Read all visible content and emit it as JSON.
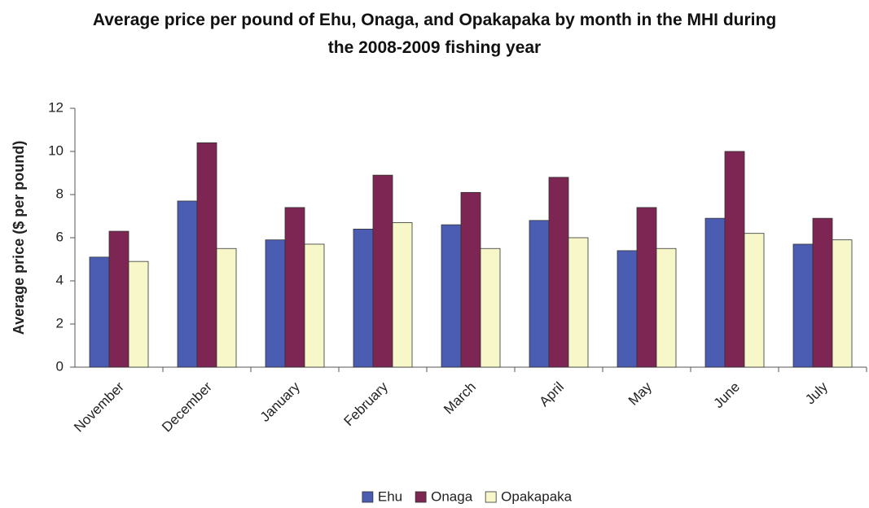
{
  "chart_data": {
    "type": "bar",
    "title": "Average price per pound of Ehu, Onaga, and Opakapaka by month in the MHI during the 2008-2009 fishing year",
    "y_label": "Average price ($ per pound)",
    "categories": [
      "November",
      "December",
      "January",
      "February",
      "March",
      "April",
      "May",
      "June",
      "July"
    ],
    "series": [
      {
        "name": "Ehu",
        "color": "#4b5cb3",
        "values": [
          5.1,
          7.7,
          5.9,
          6.4,
          6.6,
          6.8,
          5.4,
          6.9,
          5.7
        ]
      },
      {
        "name": "Onaga",
        "color": "#7d2653",
        "values": [
          6.3,
          10.4,
          7.4,
          8.9,
          8.1,
          8.8,
          7.4,
          10.0,
          6.9
        ]
      },
      {
        "name": "Opakapaka",
        "color": "#f7f7c9",
        "values": [
          4.9,
          5.5,
          5.7,
          6.7,
          5.5,
          6.0,
          5.5,
          6.2,
          5.9
        ]
      }
    ],
    "ylim": [
      0,
      12
    ],
    "yticks": [
      0,
      2,
      4,
      6,
      8,
      10,
      12
    ],
    "grid": false,
    "legend": "bottom"
  }
}
